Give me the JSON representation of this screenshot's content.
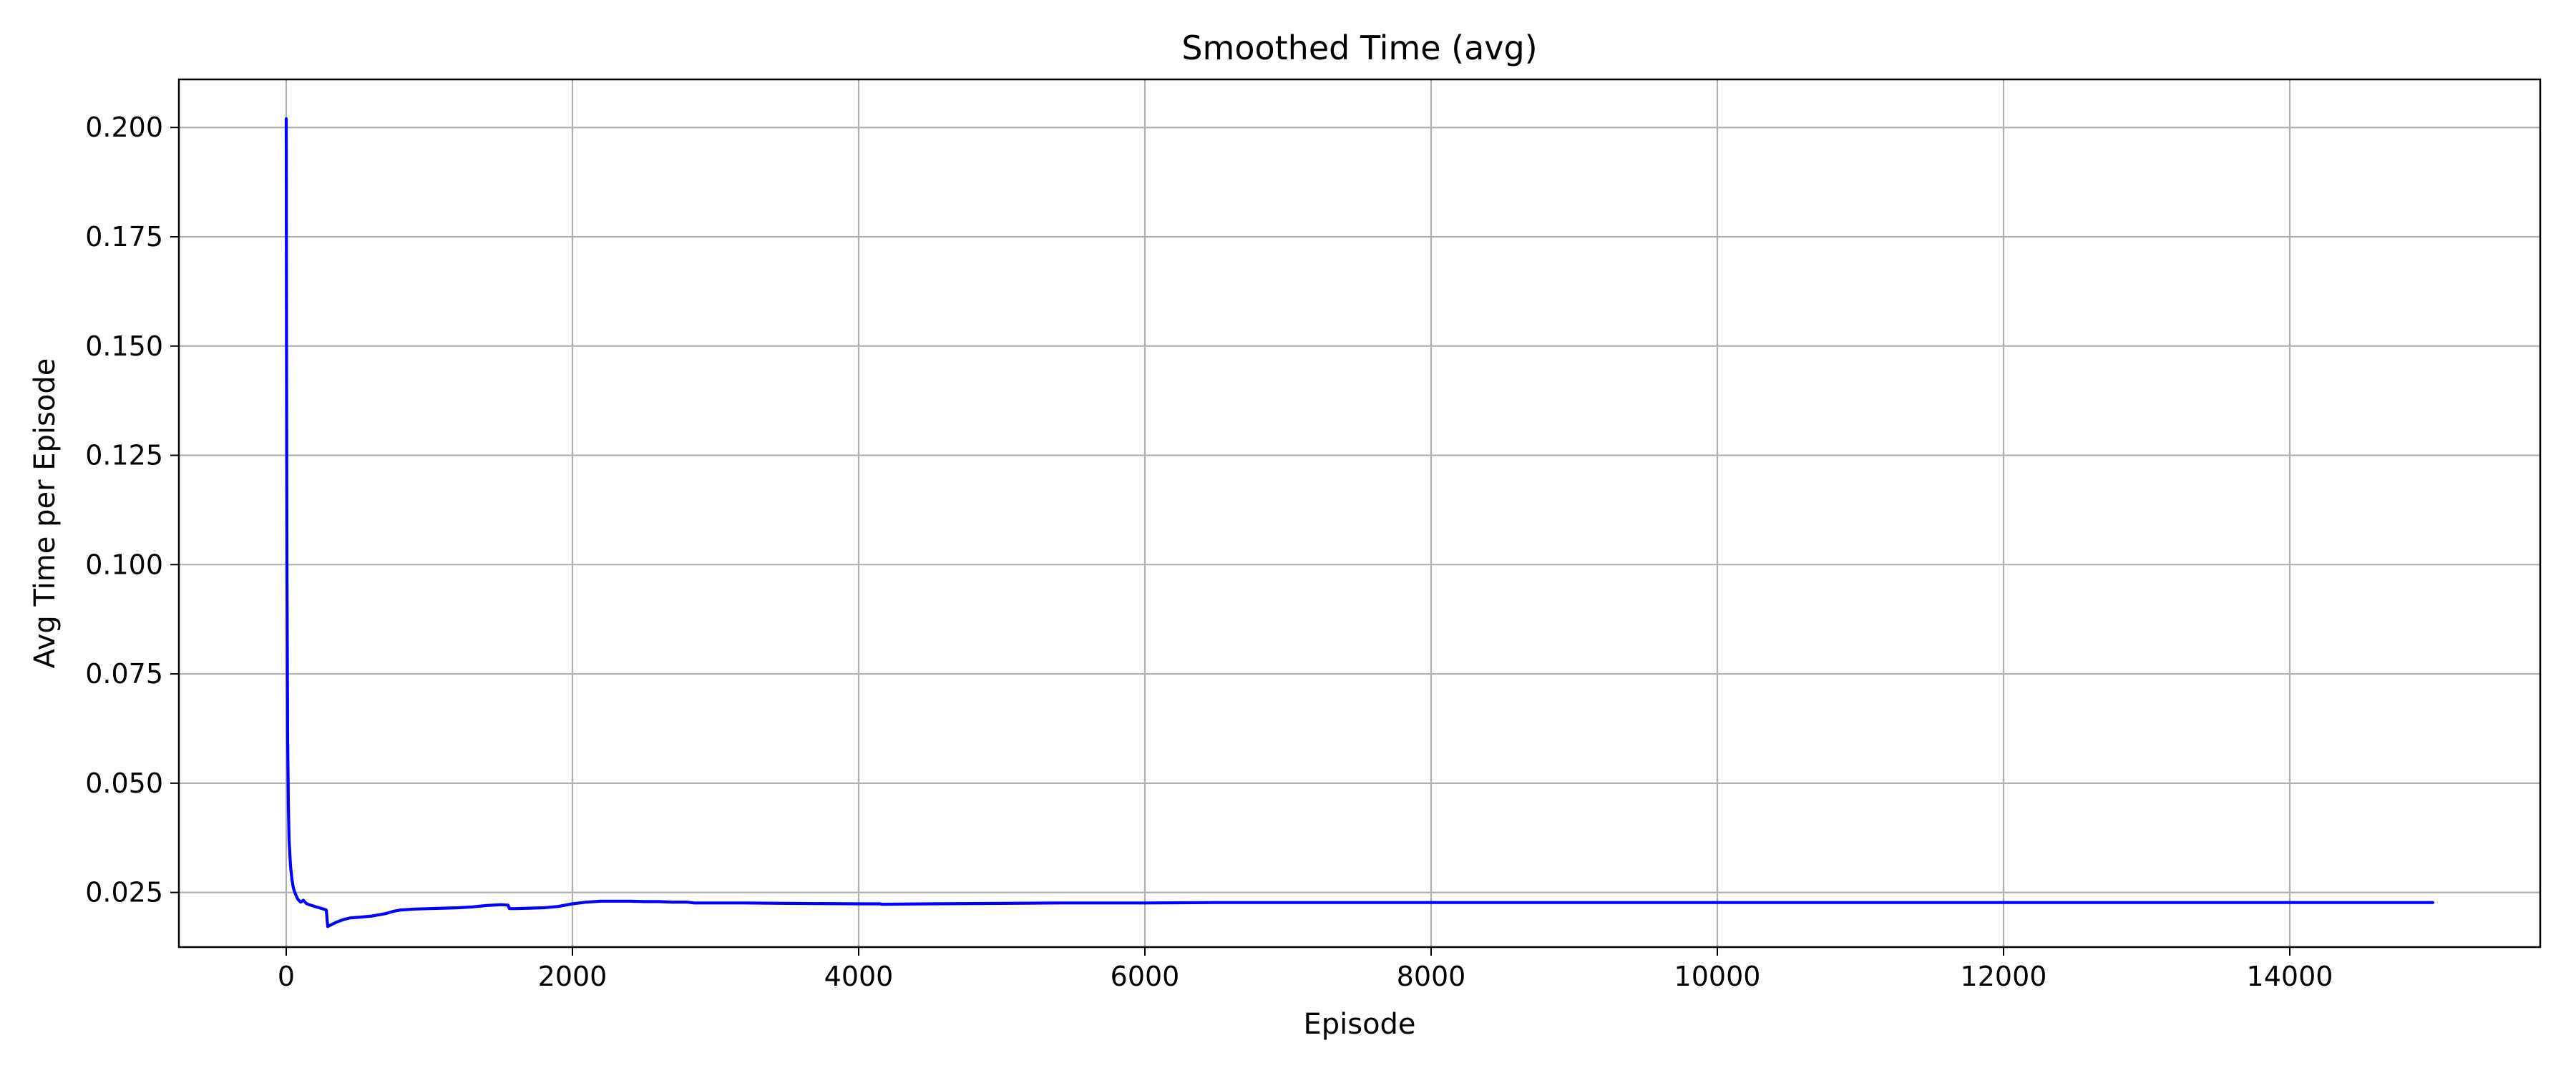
{
  "chart_data": {
    "type": "line",
    "title": "Smoothed Time (avg)",
    "xlabel": "Episode",
    "ylabel": "Avg Time per Episode",
    "xlim": [
      -750,
      15750
    ],
    "ylim": [
      0.0125,
      0.211
    ],
    "xticks": [
      0,
      2000,
      4000,
      6000,
      8000,
      10000,
      12000,
      14000
    ],
    "xtick_labels": [
      "0",
      "2000",
      "4000",
      "6000",
      "8000",
      "10000",
      "12000",
      "14000"
    ],
    "yticks": [
      0.025,
      0.05,
      0.075,
      0.1,
      0.125,
      0.15,
      0.175,
      0.2
    ],
    "ytick_labels": [
      "0.025",
      "0.050",
      "0.075",
      "0.100",
      "0.125",
      "0.150",
      "0.175",
      "0.200"
    ],
    "grid": true,
    "legend": "none",
    "series": [
      {
        "color": "#0000ff",
        "x": [
          0,
          2,
          5,
          10,
          15,
          20,
          30,
          40,
          50,
          60,
          80,
          100,
          120,
          140,
          160,
          180,
          200,
          230,
          260,
          280,
          290,
          300,
          350,
          400,
          450,
          500,
          600,
          700,
          750,
          800,
          900,
          1000,
          1100,
          1200,
          1300,
          1400,
          1500,
          1550,
          1560,
          1600,
          1700,
          1800,
          1900,
          2000,
          2100,
          2200,
          2300,
          2400,
          2500,
          2600,
          2700,
          2800,
          2850,
          3000,
          3200,
          3500,
          4000,
          4150,
          4160,
          4500,
          5000,
          5400,
          6000,
          6500,
          6700,
          7000,
          8000,
          9000,
          9200,
          10000,
          10500,
          11000,
          11700,
          12000,
          13000,
          14000,
          14300,
          15000
        ],
        "y": [
          0.202,
          0.15,
          0.1,
          0.06,
          0.045,
          0.037,
          0.031,
          0.028,
          0.026,
          0.025,
          0.0235,
          0.0228,
          0.0232,
          0.0225,
          0.0222,
          0.022,
          0.0218,
          0.0215,
          0.0212,
          0.021,
          0.0172,
          0.0174,
          0.0182,
          0.0188,
          0.0192,
          0.0193,
          0.0196,
          0.0202,
          0.0207,
          0.021,
          0.0212,
          0.0213,
          0.0214,
          0.0215,
          0.0217,
          0.022,
          0.0222,
          0.0221,
          0.0213,
          0.0213,
          0.0214,
          0.0215,
          0.0218,
          0.0224,
          0.0228,
          0.023,
          0.023,
          0.023,
          0.0229,
          0.0229,
          0.0228,
          0.0228,
          0.0226,
          0.0226,
          0.0226,
          0.0225,
          0.0224,
          0.0224,
          0.0223,
          0.0224,
          0.0225,
          0.0226,
          0.0226,
          0.0227,
          0.0227,
          0.0227,
          0.0227,
          0.0227,
          0.0227,
          0.0227,
          0.0227,
          0.0227,
          0.0227,
          0.0227,
          0.0227,
          0.0227,
          0.0227,
          0.0227
        ]
      }
    ]
  }
}
